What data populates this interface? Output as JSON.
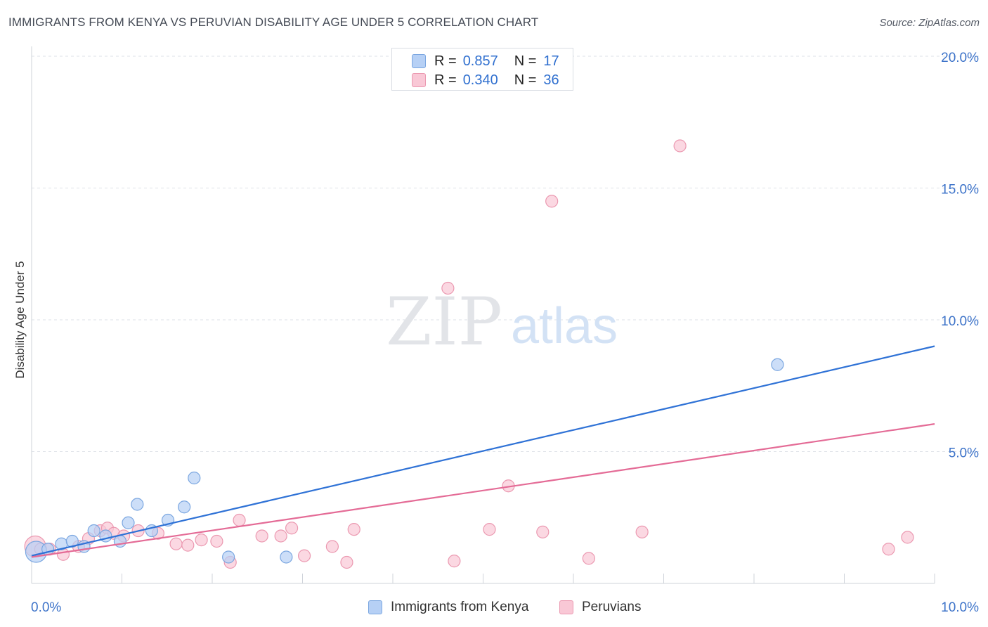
{
  "title": "IMMIGRANTS FROM KENYA VS PERUVIAN DISABILITY AGE UNDER 5 CORRELATION CHART",
  "source": "Source: ZipAtlas.com",
  "watermark": {
    "zip": "ZIP",
    "atlas": "atlas"
  },
  "legend": {
    "series1": {
      "r_label": "R =",
      "r_value": "0.857",
      "n_label": "N =",
      "n_value": "17"
    },
    "series2": {
      "r_label": "R =",
      "r_value": "0.340",
      "n_label": "N =",
      "n_value": "36"
    }
  },
  "bottom_legend": {
    "series1": "Immigrants from Kenya",
    "series2": "Peruvians"
  },
  "colors": {
    "kenya_fill": "#b6d0f5",
    "kenya_stroke": "#7aa6e0",
    "kenya_line": "#2f72d6",
    "peru_fill": "#f9c8d6",
    "peru_stroke": "#eb98b0",
    "peru_line": "#e46b96",
    "axis_text": "#3d73c9",
    "grid": "#dde1e7"
  },
  "chart_data": {
    "type": "scatter",
    "title": "IMMIGRANTS FROM KENYA VS PERUVIAN DISABILITY AGE UNDER 5 CORRELATION CHART",
    "xlabel": "",
    "ylabel": "Disability Age Under 5",
    "xlim": [
      0,
      10
    ],
    "ylim": [
      0,
      20
    ],
    "x_tick_labels": [
      "0.0%",
      "10.0%"
    ],
    "y_ticks": [
      5,
      10,
      15,
      20
    ],
    "y_tick_labels": [
      "5.0%",
      "10.0%",
      "15.0%",
      "20.0%"
    ],
    "series": [
      {
        "name": "Immigrants from Kenya",
        "points": [
          {
            "x": 0.05,
            "y": 1.2,
            "size": "large"
          },
          {
            "x": 0.18,
            "y": 1.3
          },
          {
            "x": 0.33,
            "y": 1.5
          },
          {
            "x": 0.45,
            "y": 1.6
          },
          {
            "x": 0.58,
            "y": 1.4
          },
          {
            "x": 0.69,
            "y": 2.0
          },
          {
            "x": 0.82,
            "y": 1.8
          },
          {
            "x": 0.98,
            "y": 1.6
          },
          {
            "x": 1.07,
            "y": 2.3
          },
          {
            "x": 1.17,
            "y": 3.0
          },
          {
            "x": 1.33,
            "y": 2.0
          },
          {
            "x": 1.51,
            "y": 2.4
          },
          {
            "x": 1.69,
            "y": 2.9
          },
          {
            "x": 1.8,
            "y": 4.0
          },
          {
            "x": 2.18,
            "y": 1.0
          },
          {
            "x": 2.82,
            "y": 1.0
          },
          {
            "x": 8.26,
            "y": 8.3
          }
        ],
        "trend": {
          "x0": 0,
          "y0": 1.05,
          "x1": 10,
          "y1": 9.0
        }
      },
      {
        "name": "Peruvians",
        "points": [
          {
            "x": 0.04,
            "y": 1.4,
            "size": "large"
          },
          {
            "x": 0.2,
            "y": 1.3
          },
          {
            "x": 0.35,
            "y": 1.1
          },
          {
            "x": 0.52,
            "y": 1.4
          },
          {
            "x": 0.63,
            "y": 1.7
          },
          {
            "x": 0.76,
            "y": 2.0
          },
          {
            "x": 0.84,
            "y": 2.1
          },
          {
            "x": 0.91,
            "y": 1.9
          },
          {
            "x": 1.02,
            "y": 1.8
          },
          {
            "x": 1.18,
            "y": 2.0
          },
          {
            "x": 1.4,
            "y": 1.9
          },
          {
            "x": 1.6,
            "y": 1.5
          },
          {
            "x": 1.73,
            "y": 1.45
          },
          {
            "x": 1.88,
            "y": 1.65
          },
          {
            "x": 2.05,
            "y": 1.6
          },
          {
            "x": 2.2,
            "y": 0.8
          },
          {
            "x": 2.3,
            "y": 2.4
          },
          {
            "x": 2.55,
            "y": 1.8
          },
          {
            "x": 2.76,
            "y": 1.8
          },
          {
            "x": 2.88,
            "y": 2.1
          },
          {
            "x": 3.02,
            "y": 1.05
          },
          {
            "x": 3.33,
            "y": 1.4
          },
          {
            "x": 3.49,
            "y": 0.8
          },
          {
            "x": 3.57,
            "y": 2.05
          },
          {
            "x": 4.68,
            "y": 0.85
          },
          {
            "x": 4.61,
            "y": 11.2
          },
          {
            "x": 5.07,
            "y": 2.05
          },
          {
            "x": 5.28,
            "y": 3.7
          },
          {
            "x": 5.66,
            "y": 1.95
          },
          {
            "x": 5.76,
            "y": 14.5
          },
          {
            "x": 6.17,
            "y": 0.95
          },
          {
            "x": 6.76,
            "y": 1.95
          },
          {
            "x": 7.18,
            "y": 16.6
          },
          {
            "x": 9.49,
            "y": 1.3
          },
          {
            "x": 9.7,
            "y": 1.75
          },
          {
            "x": 0.1,
            "y": 1.3
          }
        ],
        "trend": {
          "x0": 0,
          "y0": 1.0,
          "x1": 10,
          "y1": 6.05
        }
      }
    ]
  }
}
